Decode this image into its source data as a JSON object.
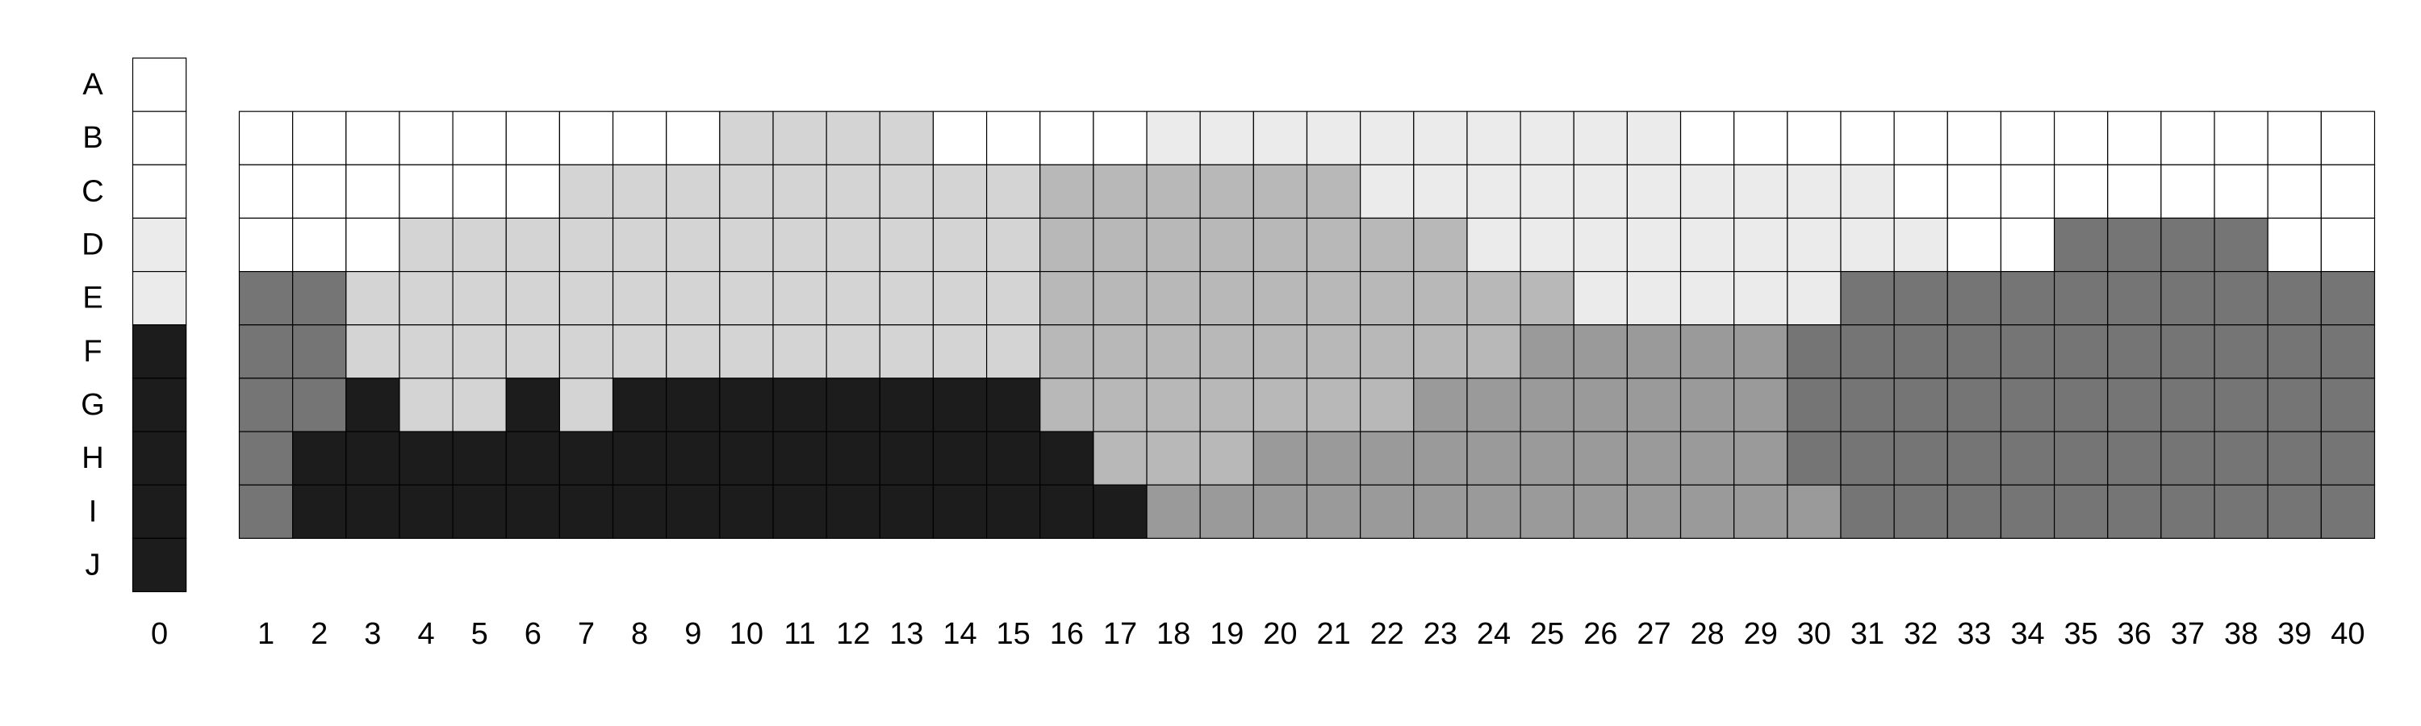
{
  "rows": [
    "A",
    "B",
    "C",
    "D",
    "E",
    "F",
    "G",
    "H",
    "I",
    "J"
  ],
  "columns": [
    "0",
    "1",
    "2",
    "3",
    "4",
    "5",
    "6",
    "7",
    "8",
    "9",
    "10",
    "11",
    "12",
    "13",
    "14",
    "15",
    "16",
    "17",
    "18",
    "19",
    "20",
    "21",
    "22",
    "23",
    "24",
    "25",
    "26",
    "27",
    "28",
    "29",
    "30",
    "31",
    "32",
    "33",
    "34",
    "35",
    "36",
    "37",
    "38",
    "39",
    "40"
  ],
  "shade_colors": {
    "0": "#ffffff",
    "1": "#ebebeb",
    "2": "#d4d4d4",
    "3": "#b8b8b8",
    "4": "#9a9a9a",
    "5": "#757575",
    "6": "#1c1c1c"
  },
  "column_0": {
    "rows": [
      "A",
      "B",
      "C",
      "D",
      "E",
      "F",
      "G",
      "H",
      "I",
      "J"
    ],
    "shades": [
      0,
      0,
      0,
      1,
      1,
      6,
      6,
      6,
      6,
      6
    ]
  },
  "main_grid": {
    "rows": [
      "B",
      "C",
      "D",
      "E",
      "F",
      "G",
      "H",
      "I"
    ],
    "shades": [
      [
        0,
        0,
        0,
        0,
        0,
        0,
        0,
        0,
        0,
        2,
        2,
        2,
        2,
        0,
        0,
        0,
        0,
        1,
        1,
        1,
        1,
        1,
        1,
        1,
        1,
        1,
        1,
        0,
        0,
        0,
        0,
        0,
        0,
        0,
        0,
        0,
        0,
        0,
        0,
        0
      ],
      [
        0,
        0,
        0,
        0,
        0,
        0,
        2,
        2,
        2,
        2,
        2,
        2,
        2,
        2,
        2,
        3,
        3,
        3,
        3,
        3,
        3,
        1,
        1,
        1,
        1,
        1,
        1,
        1,
        1,
        1,
        1,
        0,
        0,
        0,
        0,
        0,
        0,
        0,
        0,
        0
      ],
      [
        0,
        0,
        0,
        2,
        2,
        2,
        2,
        2,
        2,
        2,
        2,
        2,
        2,
        2,
        2,
        3,
        3,
        3,
        3,
        3,
        3,
        3,
        3,
        1,
        1,
        1,
        1,
        1,
        1,
        1,
        1,
        1,
        0,
        0,
        5,
        5,
        5,
        5,
        0,
        0
      ],
      [
        5,
        5,
        2,
        2,
        2,
        2,
        2,
        2,
        2,
        2,
        2,
        2,
        2,
        2,
        2,
        3,
        3,
        3,
        3,
        3,
        3,
        3,
        3,
        3,
        3,
        1,
        1,
        1,
        1,
        1,
        5,
        5,
        5,
        5,
        5,
        5,
        5,
        5,
        5,
        5
      ],
      [
        5,
        5,
        2,
        2,
        2,
        2,
        2,
        2,
        2,
        2,
        2,
        2,
        2,
        2,
        2,
        3,
        3,
        3,
        3,
        3,
        3,
        3,
        3,
        3,
        4,
        4,
        4,
        4,
        4,
        5,
        5,
        5,
        5,
        5,
        5,
        5,
        5,
        5,
        5,
        5
      ],
      [
        5,
        5,
        6,
        2,
        2,
        6,
        2,
        6,
        6,
        6,
        6,
        6,
        6,
        6,
        6,
        3,
        3,
        3,
        3,
        3,
        3,
        3,
        4,
        4,
        4,
        4,
        4,
        4,
        4,
        5,
        5,
        5,
        5,
        5,
        5,
        5,
        5,
        5,
        5,
        5
      ],
      [
        5,
        6,
        6,
        6,
        6,
        6,
        6,
        6,
        6,
        6,
        6,
        6,
        6,
        6,
        6,
        6,
        3,
        3,
        3,
        4,
        4,
        4,
        4,
        4,
        4,
        4,
        4,
        4,
        4,
        5,
        5,
        5,
        5,
        5,
        5,
        5,
        5,
        5,
        5,
        5
      ],
      [
        5,
        6,
        6,
        6,
        6,
        6,
        6,
        6,
        6,
        6,
        6,
        6,
        6,
        6,
        6,
        6,
        6,
        4,
        4,
        4,
        4,
        4,
        4,
        4,
        4,
        4,
        4,
        4,
        4,
        4,
        5,
        5,
        5,
        5,
        5,
        5,
        5,
        5,
        5,
        5
      ]
    ]
  }
}
